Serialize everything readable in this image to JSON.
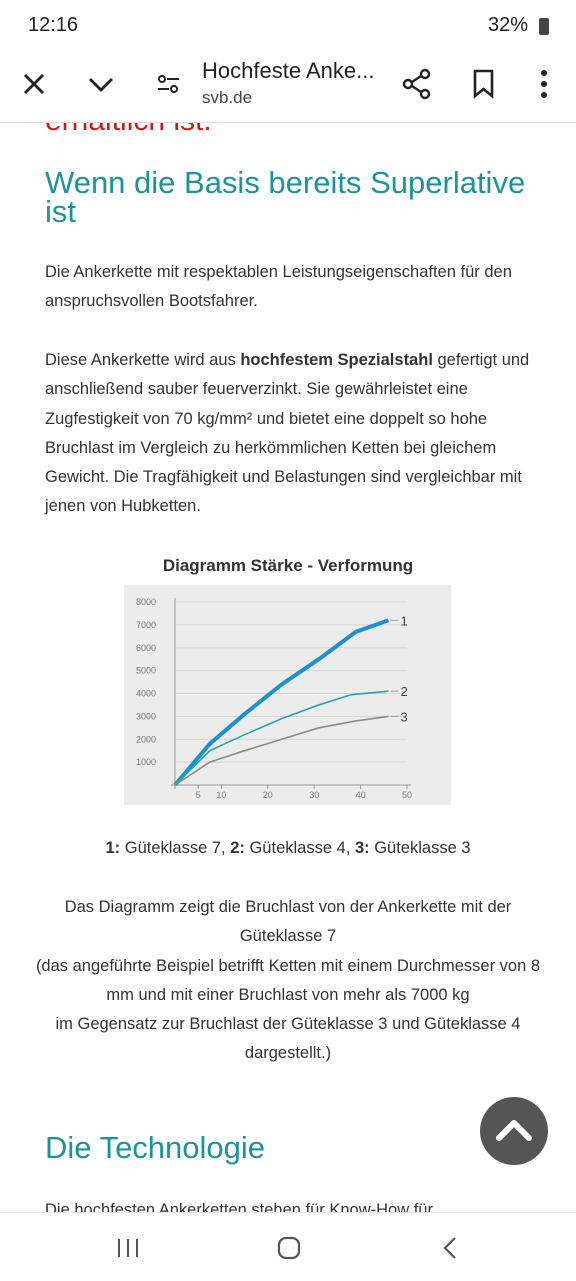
{
  "status_bar": {
    "time": "12:16",
    "battery": "32%"
  },
  "top_bar": {
    "title": "Hochfeste Anke...",
    "domain": "svb.de"
  },
  "content": {
    "cut_heading": "erhältlich ist.",
    "heading1": "Wenn die Basis bereits Superlative ist",
    "paragraph1": "Die Ankerkette mit respektablen Leistungseigenschaften für den anspruchsvollen Bootsfahrer.",
    "paragraph2": [
      "Diese Ankerkette wird aus ",
      "hochfestem Spezialstahl",
      " gefertigt und anschließend sauber feuerverzinkt. Sie gewährleistet eine Zugfestigkeit von 70 kg/mm² und bietet eine doppelt so hohe Bruchlast im Vergleich zu herkömmlichen Ketten bei gleichem Gewicht. Die Tragfähigkeit und Belastungen sind vergleichbar mit jenen von Hubketten."
    ],
    "legend_line": [
      "1:",
      " Güteklasse 7, ",
      "2:",
      " Güteklasse 4, ",
      "3:",
      " Güteklasse 3"
    ],
    "caption": [
      "Das Diagramm zeigt die Bruchlast von der Ankerkette mit der Güteklasse 7",
      "(das angeführte Beispiel betrifft Ketten mit einem Durchmesser von 8 mm und mit einer Bruchlast von mehr als 7000 kg",
      "im Gegensatz zur Bruchlast der Güteklasse 3 und Güteklasse 4 dargestellt.)"
    ],
    "heading2": "Die Technologie",
    "cut_paragraph": "Die hochfesten Ankerketten stehen für Know-How für"
  },
  "chart_data": {
    "type": "line",
    "title": "Diagramm Stärke - Verformung",
    "xlim": [
      0,
      50
    ],
    "xticks": [
      5,
      10,
      20,
      30,
      40,
      50
    ],
    "ylim": [
      0,
      8000
    ],
    "yticks": [
      1000,
      2000,
      3000,
      4000,
      5000,
      6000,
      7000,
      8000
    ],
    "grid": true,
    "series": [
      {
        "name": "1",
        "color": "#1b92c8",
        "x": [
          0,
          7.5,
          15,
          23,
          31,
          39,
          46
        ],
        "values": [
          0,
          1800,
          3100,
          4400,
          5500,
          6700,
          7200
        ]
      },
      {
        "name": "2",
        "color": "#2aa3a6",
        "x": [
          0,
          7.5,
          15,
          23,
          31,
          38,
          46
        ],
        "values": [
          0,
          1500,
          2200,
          2900,
          3500,
          3950,
          4100
        ]
      },
      {
        "name": "3",
        "color": "#8a8a8a",
        "x": [
          0,
          7.5,
          15,
          23,
          31,
          39,
          46
        ],
        "values": [
          0,
          1000,
          1500,
          2000,
          2500,
          2800,
          3000
        ]
      }
    ]
  }
}
